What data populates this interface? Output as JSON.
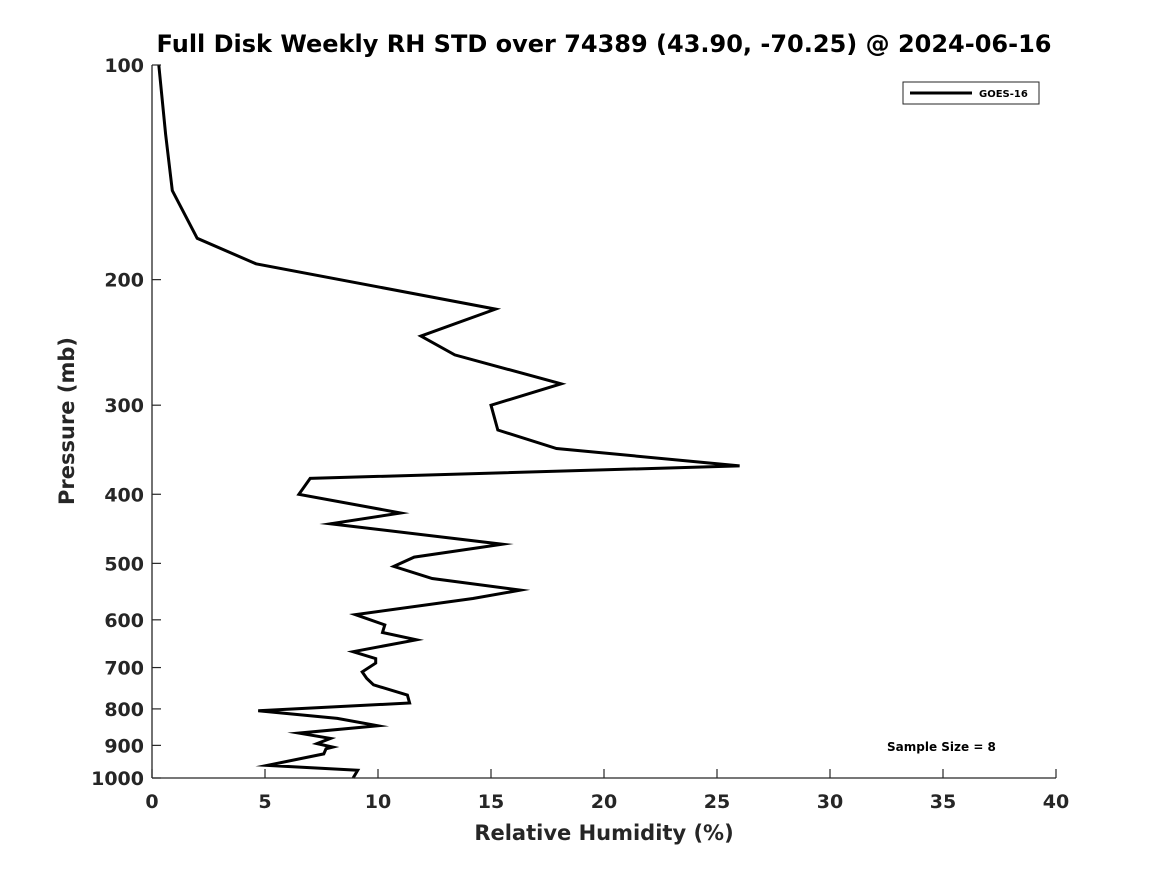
{
  "chart_data": {
    "type": "line",
    "title": "Full Disk Weekly RH STD over 74389 (43.90, -70.25) @ 2024-06-16",
    "xlabel": "Relative Humidity (%)",
    "ylabel": "Pressure (mb)",
    "xlim": [
      0,
      40
    ],
    "ylim": [
      100,
      1000
    ],
    "yscale": "log",
    "yreversed": true,
    "grid": false,
    "legend_position": "top-right",
    "x_ticks": [
      "0",
      "5",
      "10",
      "15",
      "20",
      "25",
      "30",
      "35",
      "40"
    ],
    "y_ticks": [
      "100",
      "200",
      "300",
      "400",
      "500",
      "600",
      "700",
      "800",
      "900",
      "1000"
    ],
    "annotation": "Sample Size = 8",
    "series": [
      {
        "name": "GOES-16",
        "color": "#000000",
        "points": [
          [
            0.3,
            100
          ],
          [
            0.6,
            125
          ],
          [
            0.9,
            150
          ],
          [
            2.0,
            175
          ],
          [
            4.6,
            190
          ],
          [
            15.2,
            220
          ],
          [
            11.9,
            240
          ],
          [
            13.4,
            255
          ],
          [
            18.1,
            280
          ],
          [
            15.0,
            300
          ],
          [
            15.3,
            325
          ],
          [
            17.9,
            345
          ],
          [
            26.0,
            365
          ],
          [
            7.0,
            380
          ],
          [
            6.5,
            400
          ],
          [
            11.0,
            425
          ],
          [
            7.9,
            440
          ],
          [
            15.5,
            470
          ],
          [
            11.6,
            490
          ],
          [
            10.7,
            505
          ],
          [
            12.4,
            525
          ],
          [
            16.3,
            545
          ],
          [
            14.2,
            560
          ],
          [
            9.0,
            590
          ],
          [
            10.3,
            610
          ],
          [
            10.2,
            625
          ],
          [
            11.7,
            640
          ],
          [
            8.9,
            665
          ],
          [
            9.9,
            680
          ],
          [
            9.9,
            690
          ],
          [
            9.3,
            710
          ],
          [
            9.5,
            725
          ],
          [
            9.8,
            740
          ],
          [
            11.3,
            765
          ],
          [
            11.4,
            785
          ],
          [
            4.7,
            805
          ],
          [
            8.2,
            825
          ],
          [
            10.0,
            845
          ],
          [
            6.5,
            865
          ],
          [
            7.9,
            880
          ],
          [
            7.3,
            895
          ],
          [
            8.0,
            905
          ],
          [
            7.7,
            910
          ],
          [
            7.6,
            925
          ],
          [
            5.1,
            960
          ],
          [
            9.1,
            975
          ],
          [
            8.9,
            1000
          ]
        ]
      }
    ]
  }
}
